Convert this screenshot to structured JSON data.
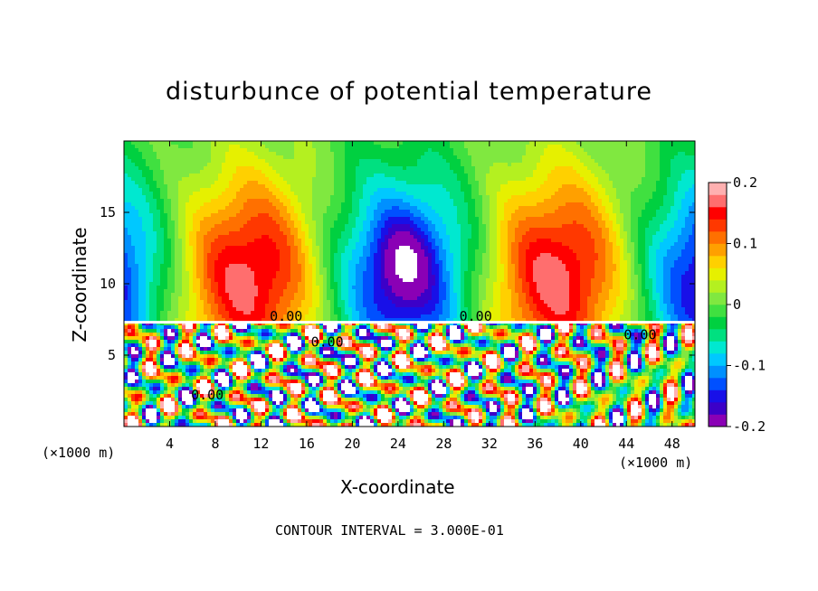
{
  "chart_data": {
    "type": "heatmap",
    "title": "disturbunce of potential temperature",
    "xlabel": "X-coordinate",
    "ylabel": "Z-coordinate",
    "x_unit_label": "(×1000 m)",
    "x_unit_label_right": "(×1000 m)",
    "footnote": "CONTOUR INTERVAL = 3.000E-01",
    "xlim": [
      0,
      50
    ],
    "ylim": [
      0,
      20
    ],
    "x_ticks": [
      4,
      8,
      12,
      16,
      20,
      24,
      28,
      32,
      36,
      40,
      44,
      48
    ],
    "y_ticks": [
      5,
      10,
      15
    ],
    "colorbar": {
      "range": [
        -0.2,
        0.2
      ],
      "ticks": [
        {
          "value": 0.2,
          "label": "0.2"
        },
        {
          "value": 0.1,
          "label": "0.1"
        },
        {
          "value": 0.0,
          "label": "0"
        },
        {
          "value": -0.1,
          "label": "-0.1"
        },
        {
          "value": -0.2,
          "label": "-0.2"
        }
      ],
      "colors": [
        "#8a00b5",
        "#3c00c8",
        "#1810e8",
        "#0050ff",
        "#0090ff",
        "#00c8ff",
        "#00e8d0",
        "#00e080",
        "#00d040",
        "#40e040",
        "#80e840",
        "#b4f020",
        "#e6f000",
        "#ffd000",
        "#ffa000",
        "#ff7000",
        "#ff3800",
        "#ff0000",
        "#ff6e6e",
        "#ffb0b0"
      ]
    },
    "contour_labels": [
      {
        "x": 14.2,
        "y": 7.4,
        "text": "0.00"
      },
      {
        "x": 17.8,
        "y": 5.6,
        "text": "0.00"
      },
      {
        "x": 7.3,
        "y": 1.9,
        "text": "0.00"
      },
      {
        "x": 30.8,
        "y": 7.4,
        "text": "0.00"
      },
      {
        "x": 45.2,
        "y": 6.1,
        "text": "0.00"
      }
    ]
  }
}
